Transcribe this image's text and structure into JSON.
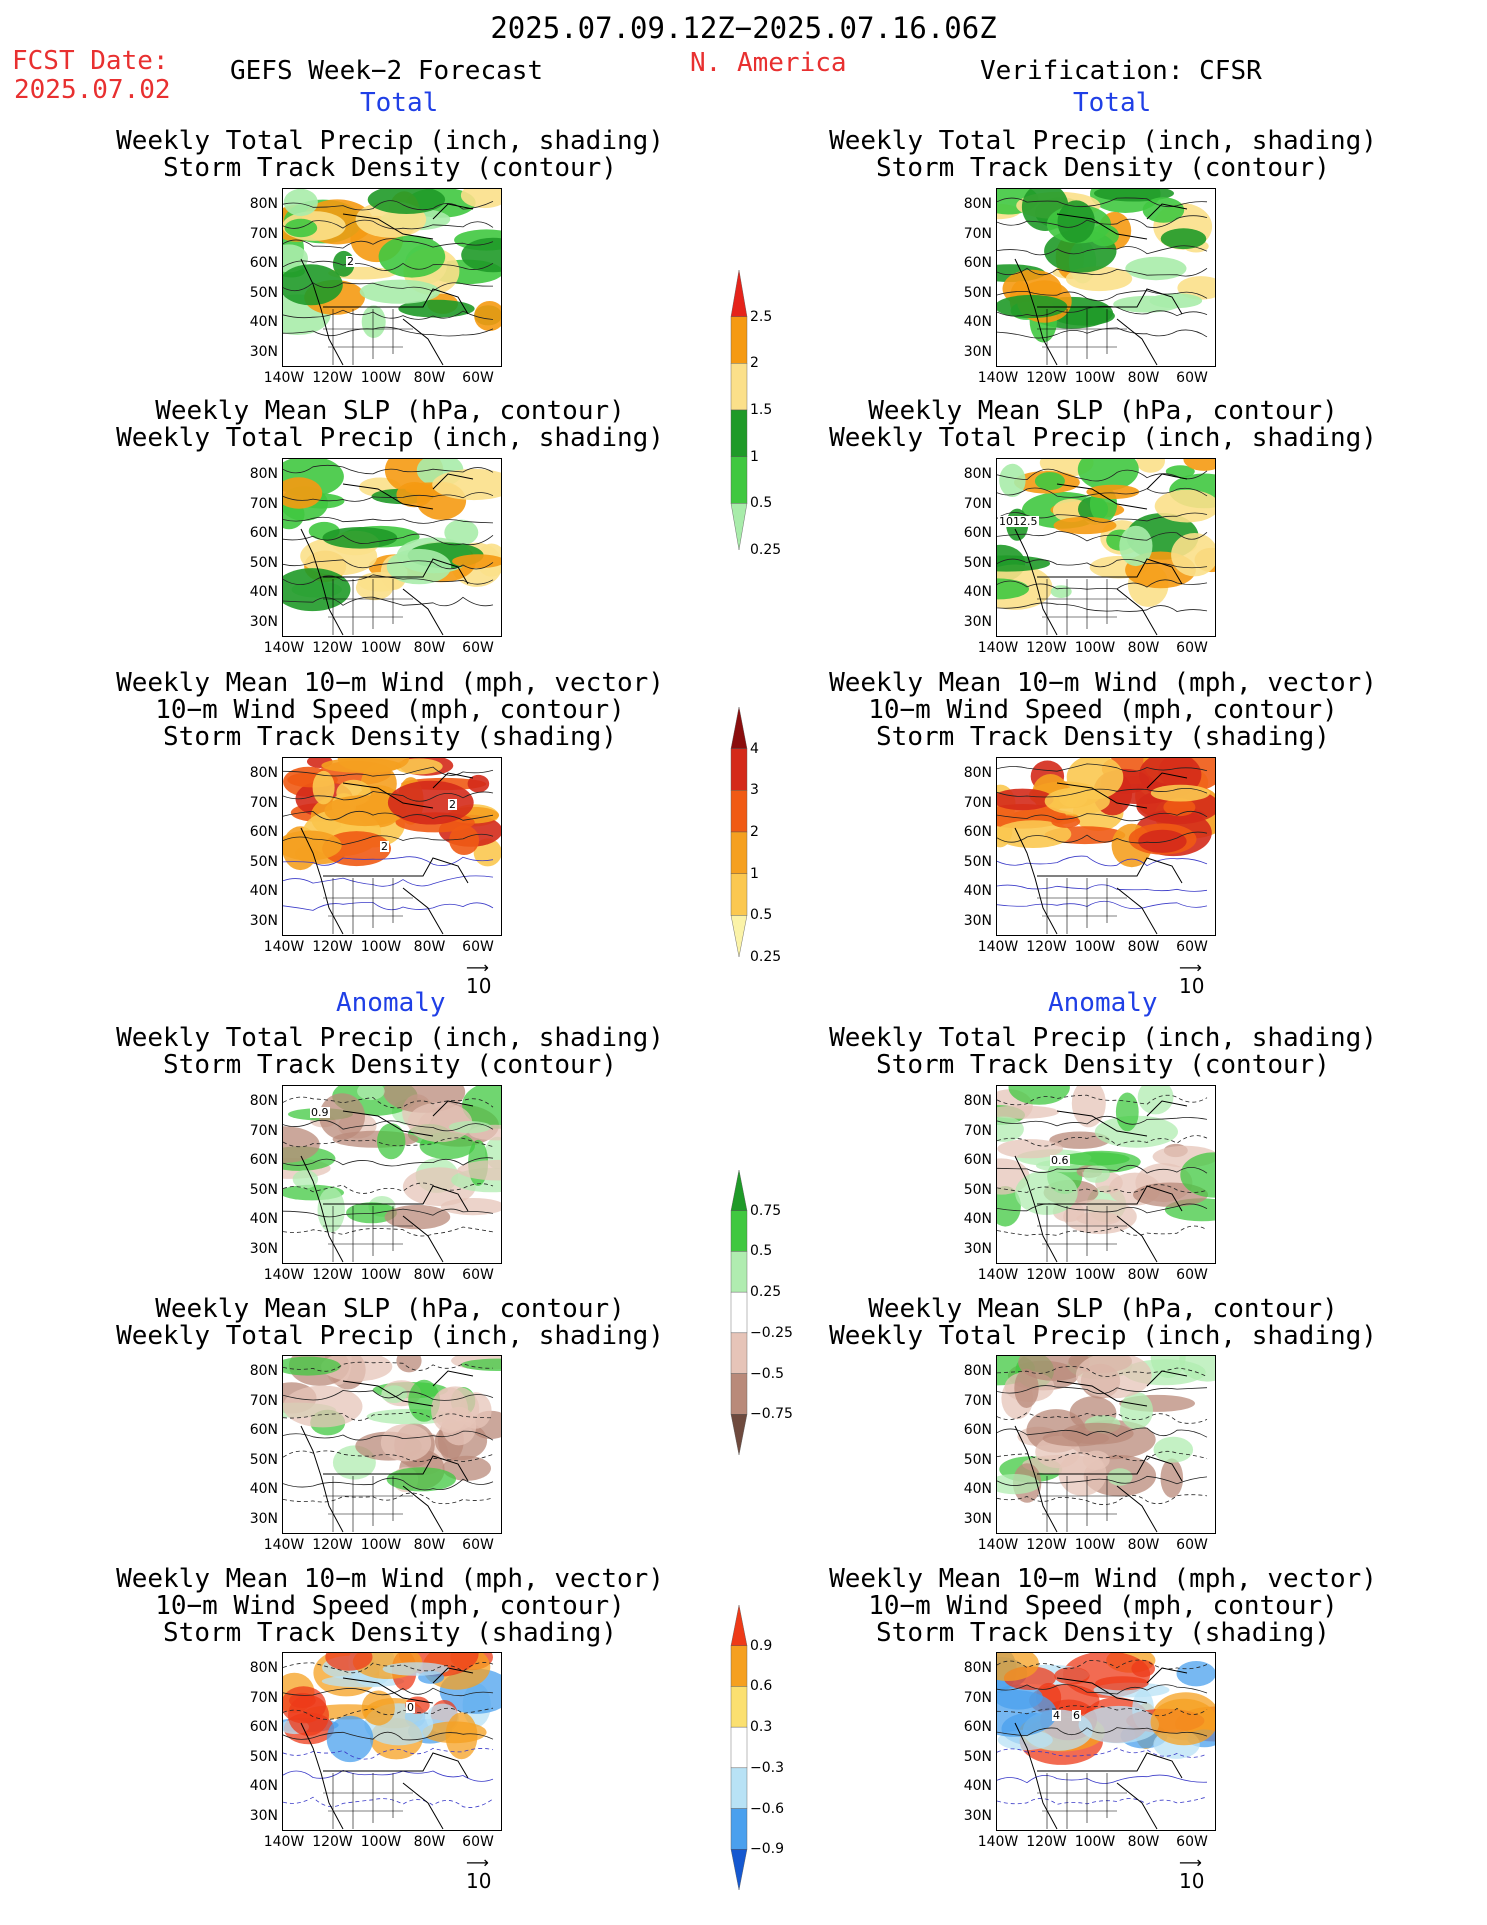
{
  "header": {
    "date_range": "2025.07.09.12Z−2025.07.16.06Z",
    "fcst_label": "FCST Date:",
    "fcst_date": "2025.07.02",
    "forecast_title": "GEFS Week−2 Forecast",
    "region": "N. America",
    "verification": "Verification: CFSR"
  },
  "sections": {
    "total_left": "Total",
    "total_right": "Total",
    "anomaly_left": "Anomaly",
    "anomaly_right": "Anomaly"
  },
  "titles": {
    "precip_track": [
      "Weekly Total Precip (inch, shading)",
      "Storm Track Density (contour)"
    ],
    "slp_precip": [
      "Weekly Mean SLP (hPa, contour)",
      "Weekly Total Precip (inch, shading)"
    ],
    "wind_track": [
      "Weekly Mean 10−m Wind (mph, vector)",
      "10−m Wind Speed (mph, contour)",
      "Storm Track Density (shading)"
    ]
  },
  "axes": {
    "lat_labels": [
      "80N",
      "70N",
      "60N",
      "50N",
      "40N",
      "30N"
    ],
    "lon_labels": [
      "140W",
      "120W",
      "100W",
      "80W",
      "60W"
    ]
  },
  "vector_ref": "10",
  "contour_labels": {
    "total_precip_fcst": "2",
    "total_slp_cfsr": "1012.5",
    "total_wind_fcst_a": "2",
    "total_wind_fcst_b": "2",
    "anom_precip_fcst": "0.9",
    "anom_precip_cfsr": "0.6",
    "anom_wind_fcst": "0",
    "anom_wind_cfsr_a": "4",
    "anom_wind_cfsr_b": "6"
  },
  "colorbars": [
    {
      "name": "total-precip-colorbar",
      "labels": [
        "2.5",
        "2",
        "1.5",
        "1",
        "0.5",
        "0.25"
      ],
      "colors": [
        "#e5231a",
        "#f59a12",
        "#fbe08a",
        "#1f9a28",
        "#40c840",
        "#a8ecaa"
      ]
    },
    {
      "name": "storm-density-colorbar",
      "labels": [
        "4",
        "3",
        "2",
        "1",
        "0.5",
        "0.25"
      ],
      "colors": [
        "#8a0d0d",
        "#d42a1a",
        "#f05a14",
        "#f5a020",
        "#fbc850",
        "#fbf3a8"
      ]
    },
    {
      "name": "precip-anomaly-colorbar",
      "labels": [
        "0.75",
        "0.5",
        "0.25",
        "−0.25",
        "−0.5",
        "−0.75"
      ],
      "colors": [
        "#1f9a28",
        "#40c840",
        "#b0ecb0",
        "#ffffff",
        "#e6c4b8",
        "#b98a7a",
        "#6e4a3e"
      ]
    },
    {
      "name": "density-anomaly-colorbar",
      "labels": [
        "0.9",
        "0.6",
        "0.3",
        "−0.3",
        "−0.6",
        "−0.9"
      ],
      "colors": [
        "#ee3a18",
        "#f5a020",
        "#fbe070",
        "#ffffff",
        "#b8e2f5",
        "#4aa0ee",
        "#1558d0"
      ]
    }
  ],
  "panels": [
    {
      "name": "map-total-precip-fcst",
      "palette": "precip"
    },
    {
      "name": "map-total-precip-cfsr",
      "palette": "precip"
    },
    {
      "name": "map-total-slp-fcst",
      "palette": "precip"
    },
    {
      "name": "map-total-slp-cfsr",
      "palette": "precip"
    },
    {
      "name": "map-total-wind-fcst",
      "palette": "density"
    },
    {
      "name": "map-total-wind-cfsr",
      "palette": "density"
    },
    {
      "name": "map-anom-precip-fcst",
      "palette": "anom-precip"
    },
    {
      "name": "map-anom-precip-cfsr",
      "palette": "anom-precip"
    },
    {
      "name": "map-anom-slp-fcst",
      "palette": "anom-precip"
    },
    {
      "name": "map-anom-slp-cfsr",
      "palette": "anom-precip"
    },
    {
      "name": "map-anom-wind-fcst",
      "palette": "anom-density"
    },
    {
      "name": "map-anom-wind-cfsr",
      "palette": "anom-density"
    }
  ]
}
